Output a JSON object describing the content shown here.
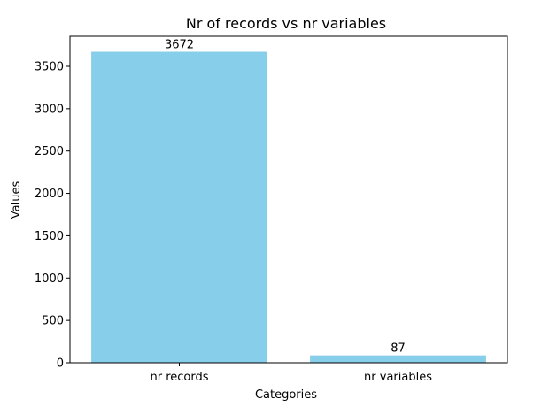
{
  "chart_data": {
    "type": "bar",
    "title": "Nr of records vs nr variables",
    "xlabel": "Categories",
    "ylabel": "Values",
    "categories": [
      "nr records",
      "nr variables"
    ],
    "values": [
      3672,
      87
    ],
    "data_labels": [
      "3672",
      "87"
    ],
    "ylim": [
      0,
      3855
    ],
    "yticks": [
      0,
      500,
      1000,
      1500,
      2000,
      2500,
      3000,
      3500
    ],
    "bar_color": "#87ceeb",
    "grid": false,
    "legend": "none"
  }
}
